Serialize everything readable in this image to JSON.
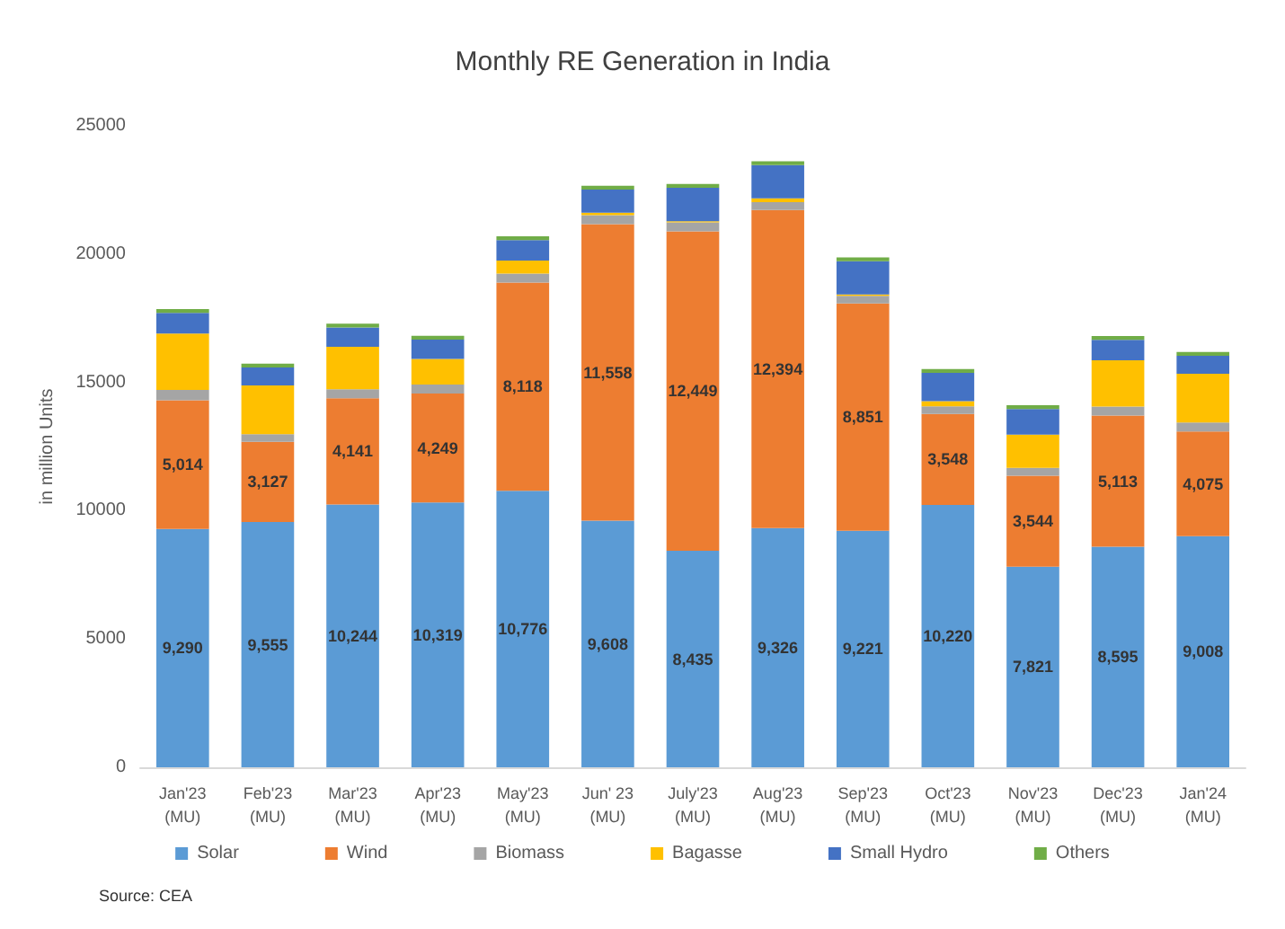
{
  "chart_data": {
    "type": "bar",
    "title": "Monthly RE Generation in India",
    "ylabel": "in million Units",
    "annotations": [
      "Source: CEA"
    ],
    "categories": [
      "Jan'23\n(MU)",
      "Feb'23\n(MU)",
      "Mar'23\n(MU)",
      "Apr'23\n(MU)",
      "May'23\n(MU)",
      "Jun' 23\n(MU)",
      "July'23\n(MU)",
      "Aug'23\n(MU)",
      "Sep'23\n(MU)",
      "Oct'23\n(MU)",
      "Nov'23\n(MU)",
      "Dec'23\n(MU)",
      "Jan'24\n(MU)"
    ],
    "stacked": true,
    "ylim": [
      0,
      25000
    ],
    "yticks": [
      0,
      5000,
      10000,
      15000,
      20000,
      25000
    ],
    "grid": false,
    "legend": "bottom",
    "series": [
      {
        "name": "Solar",
        "color": "#5b9bd5",
        "values": [
          9290,
          9555,
          10244,
          10319,
          10776,
          9608,
          8435,
          9326,
          9221,
          10220,
          7821,
          8595,
          9008
        ],
        "value_labels": [
          "9,290",
          "9,555",
          "10,244",
          "10,319",
          "10,776",
          "9,608",
          "8,435",
          "9,326",
          "9,221",
          "10,220",
          "7,821",
          "8,595",
          "9,008"
        ]
      },
      {
        "name": "Wind",
        "color": "#ed7d31",
        "values": [
          5014,
          3127,
          4141,
          4249,
          8118,
          11558,
          12449,
          12394,
          8851,
          3548,
          3544,
          5113,
          4075
        ],
        "value_labels": [
          "5,014",
          "3,127",
          "4,141",
          "4,249",
          "8,118",
          "11,558",
          "12,449",
          "12,394",
          "8,851",
          "3,548",
          "3,544",
          "5,113",
          "4,075"
        ]
      },
      {
        "name": "Biomass",
        "color": "#a5a5a5",
        "values": [
          400,
          300,
          350,
          350,
          350,
          350,
          350,
          300,
          300,
          300,
          300,
          350,
          350
        ]
      },
      {
        "name": "Bagasse",
        "color": "#ffc000",
        "values": [
          2200,
          1900,
          1650,
          1000,
          500,
          100,
          50,
          150,
          50,
          200,
          1300,
          1800,
          1900
        ]
      },
      {
        "name": "Small Hydro",
        "color": "#4472c4",
        "values": [
          800,
          700,
          750,
          750,
          800,
          900,
          1300,
          1300,
          1300,
          1100,
          1000,
          800,
          700
        ]
      },
      {
        "name": "Others",
        "color": "#70ad47",
        "values": [
          150,
          150,
          150,
          150,
          150,
          150,
          150,
          150,
          150,
          150,
          150,
          150,
          150
        ]
      }
    ]
  }
}
